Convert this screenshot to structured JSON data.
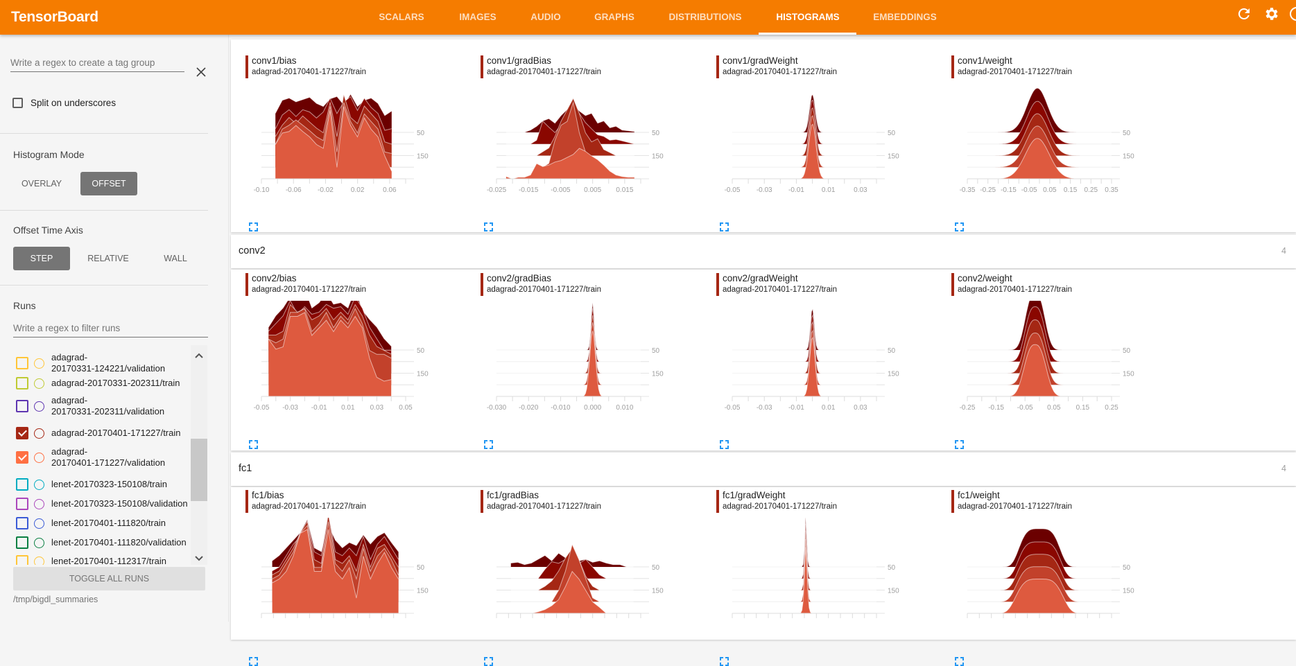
{
  "app": {
    "title": "TensorBoard"
  },
  "nav": {
    "tabs": [
      {
        "label": "SCALARS",
        "active": false
      },
      {
        "label": "IMAGES",
        "active": false
      },
      {
        "label": "AUDIO",
        "active": false
      },
      {
        "label": "GRAPHS",
        "active": false
      },
      {
        "label": "DISTRIBUTIONS",
        "active": false
      },
      {
        "label": "HISTOGRAMS",
        "active": true
      },
      {
        "label": "EMBEDDINGS",
        "active": false
      }
    ],
    "icons": [
      "reload-icon",
      "settings-icon",
      "info-icon"
    ]
  },
  "colors": {
    "brand": "#f57c00",
    "ridges": [
      "#6b0000",
      "#8a0700",
      "#a52714",
      "#c2412b",
      "#de5a3f"
    ],
    "accent_blue": "#2196f3"
  },
  "sidebar": {
    "tag_group_placeholder": "Write a regex to create a tag group",
    "split_label": "Split on underscores",
    "split_checked": false,
    "histogram_mode": {
      "label": "Histogram Mode",
      "options": [
        "OVERLAY",
        "OFFSET"
      ],
      "selected": "OFFSET"
    },
    "offset_axis": {
      "label": "Offset Time Axis",
      "options": [
        "STEP",
        "RELATIVE",
        "WALL"
      ],
      "selected": "STEP"
    },
    "runs_label": "Runs",
    "runs_filter_placeholder": "Write a regex to filter runs",
    "runs": [
      {
        "label": "adagrad-\n20170331-124221/validation",
        "color": "#ffc638",
        "checked": false
      },
      {
        "label": "adagrad-20170331-202311/train",
        "color": "#c0ca33",
        "checked": false
      },
      {
        "label": "adagrad-\n20170331-202311/validation",
        "color": "#5e35b1",
        "checked": false
      },
      {
        "label": "adagrad-20170401-171227/train",
        "color": "#a52714",
        "checked": true
      },
      {
        "label": "adagrad-\n20170401-171227/validation",
        "color": "#ff7043",
        "checked": true
      },
      {
        "label": "lenet-20170323-150108/train",
        "color": "#00acc1",
        "checked": false
      },
      {
        "label": "lenet-20170323-150108/validation",
        "color": "#ab47bc",
        "checked": false
      },
      {
        "label": "lenet-20170401-111820/train",
        "color": "#3b5bd6",
        "checked": false
      },
      {
        "label": "lenet-20170401-111820/validation",
        "color": "#0b8043",
        "checked": false
      },
      {
        "label": "lenet-20170401-112317/train",
        "color": "#ffc638",
        "checked": false
      }
    ],
    "toggle_all_label": "TOGGLE ALL RUNS",
    "logdir": "/tmp/bigdl_summaries"
  },
  "sections": [
    {
      "name": "",
      "count": "",
      "charts": [
        "conv1/bias",
        "conv1/gradBias",
        "conv1/gradWeight",
        "conv1/weight"
      ]
    },
    {
      "name": "conv2",
      "count": "4",
      "charts": [
        "conv2/bias",
        "conv2/gradBias",
        "conv2/gradWeight",
        "conv2/weight"
      ]
    },
    {
      "name": "fc1",
      "count": "4",
      "charts": [
        "fc1/bias",
        "fc1/gradBias",
        "fc1/gradWeight",
        "fc1/weight"
      ]
    }
  ],
  "chart_data": [
    {
      "type": "histogram-offset",
      "title": "conv1/bias",
      "run": "adagrad-20170401-171227/train",
      "steps": [
        50,
        100,
        150,
        200,
        250
      ],
      "step_labels": [
        "50",
        "150"
      ],
      "xlim": [
        -0.1,
        0.08
      ],
      "xticks": [
        "-0.10",
        "-0.06",
        "-0.02",
        "0.02",
        "0.06"
      ],
      "tick_values": [
        -0.1,
        -0.06,
        -0.02,
        0.02,
        0.06
      ],
      "data_range": [
        -0.0825,
        0.0625
      ],
      "densities": [
        [
          0.25,
          0.42,
          0.45,
          0.4,
          0.43,
          0.46,
          0.38,
          0.34,
          0.44,
          0.47,
          0.36,
          0.5,
          0.34,
          0.42,
          0.45,
          0.38,
          0.22,
          0.28
        ],
        [
          0.2,
          0.38,
          0.45,
          0.36,
          0.45,
          0.42,
          0.34,
          0.42,
          0.6,
          0.4,
          0.55,
          0.62,
          0.44,
          0.6,
          0.48,
          0.4,
          0.18,
          0.2
        ],
        [
          0.25,
          0.4,
          0.5,
          0.42,
          0.52,
          0.44,
          0.36,
          0.3,
          0.7,
          0.25,
          0.8,
          0.5,
          0.42,
          0.65,
          0.55,
          0.45,
          0.18,
          0.15
        ],
        [
          0.3,
          0.5,
          0.55,
          0.62,
          0.55,
          0.48,
          0.4,
          0.35,
          0.8,
          0.2,
          0.85,
          0.6,
          0.45,
          0.7,
          0.6,
          0.5,
          0.2,
          0.18
        ],
        [
          0.45,
          0.6,
          0.62,
          0.7,
          0.62,
          0.55,
          0.45,
          0.4,
          0.9,
          0.15,
          0.95,
          0.7,
          0.55,
          0.8,
          0.65,
          0.55,
          0.3,
          0.1
        ]
      ]
    },
    {
      "type": "histogram-offset",
      "title": "conv1/gradBias",
      "run": "adagrad-20170401-171227/train",
      "steps": [
        50,
        100,
        150,
        200,
        250
      ],
      "step_labels": [
        "50",
        "150"
      ],
      "xlim": [
        -0.025,
        0.02
      ],
      "xticks": [
        "-0.025",
        "-0.015",
        "-0.005",
        "0.005",
        "0.015"
      ],
      "tick_values": [
        -0.025,
        -0.015,
        -0.005,
        0.005,
        0.015
      ],
      "data_range": [
        -0.022,
        0.018
      ],
      "densities": [
        [
          0.0,
          0.0,
          0.0,
          0.0,
          0.03,
          0.08,
          0.15,
          0.18,
          0.12,
          0.22,
          0.3,
          0.36,
          0.28,
          0.22,
          0.25,
          0.12,
          0.15,
          0.06,
          0.08,
          0.03,
          0.02,
          0.01
        ],
        [
          0.0,
          0.0,
          0.0,
          0.0,
          0.0,
          0.05,
          0.3,
          0.22,
          0.15,
          0.25,
          0.4,
          0.55,
          0.4,
          0.28,
          0.2,
          0.12,
          0.1,
          0.05,
          0.06,
          0.04,
          0.02,
          0.0
        ],
        [
          0.0,
          0.0,
          0.0,
          0.0,
          0.0,
          0.0,
          0.05,
          0.1,
          0.25,
          0.45,
          0.6,
          0.75,
          0.55,
          0.3,
          0.18,
          0.22,
          0.08,
          0.04,
          0.0,
          0.0,
          0.0,
          0.0
        ],
        [
          0.0,
          0.0,
          0.0,
          0.0,
          0.0,
          0.0,
          0.0,
          0.05,
          0.35,
          0.55,
          0.6,
          0.85,
          0.45,
          0.2,
          0.1,
          0.05,
          0.0,
          0.0,
          0.0,
          0.0,
          0.0,
          0.0
        ],
        [
          0.03,
          0.0,
          0.02,
          0.02,
          0.05,
          0.2,
          0.16,
          0.18,
          0.22,
          0.24,
          0.28,
          0.32,
          0.4,
          0.36,
          0.3,
          0.25,
          0.18,
          0.1,
          0.05,
          0.03,
          0.02,
          0.02
        ]
      ]
    },
    {
      "type": "histogram-offset",
      "title": "conv1/gradWeight",
      "run": "adagrad-20170401-171227/train",
      "steps": [
        50,
        100,
        150,
        200,
        250
      ],
      "step_labels": [
        "50",
        "150"
      ],
      "xlim": [
        -0.05,
        0.04
      ],
      "xticks": [
        "-0.05",
        "-0.03",
        "-0.01",
        "0.01",
        "0.03"
      ],
      "tick_values": [
        -0.05,
        -0.03,
        -0.01,
        0.01,
        0.03
      ],
      "shape": "gaussian",
      "mean": 0.0,
      "std": [
        0.0018,
        0.0019,
        0.002,
        0.0021,
        0.0023
      ],
      "peaks": [
        0.5,
        0.58,
        0.63,
        0.68,
        0.72
      ],
      "power": 2
    },
    {
      "type": "histogram-offset",
      "title": "conv1/weight",
      "run": "adagrad-20170401-171227/train",
      "steps": [
        50,
        100,
        150,
        200,
        250
      ],
      "step_labels": [
        "50",
        "150"
      ],
      "xlim": [
        -0.35,
        0.35
      ],
      "xticks": [
        "-0.35",
        "-0.25",
        "-0.15",
        "-0.05",
        "0.05",
        "0.15",
        "0.25",
        "0.35"
      ],
      "tick_values": [
        -0.35,
        -0.25,
        -0.15,
        -0.05,
        0.05,
        0.15,
        0.25,
        0.35
      ],
      "shape": "gaussian",
      "mean": -0.01,
      "std": [
        0.05,
        0.052,
        0.054,
        0.056,
        0.058
      ],
      "peaks": [
        0.58,
        0.56,
        0.55,
        0.54,
        0.53
      ],
      "power": 2
    },
    {
      "type": "histogram-offset",
      "title": "conv2/bias",
      "run": "adagrad-20170401-171227/train",
      "steps": [
        50,
        100,
        150,
        200,
        250
      ],
      "step_labels": [
        "50",
        "150"
      ],
      "xlim": [
        -0.05,
        0.05
      ],
      "xticks": [
        "-0.05",
        "-0.03",
        "-0.01",
        "0.01",
        "0.03",
        "0.05"
      ],
      "tick_values": [
        -0.05,
        -0.03,
        -0.01,
        0.01,
        0.03,
        0.05
      ],
      "data_range": [
        -0.045,
        0.04
      ],
      "densities": [
        [
          0.3,
          0.45,
          0.55,
          0.7,
          0.75,
          0.8,
          0.55,
          0.62,
          0.75,
          0.6,
          0.62,
          0.55,
          0.8,
          0.52,
          0.4,
          0.3,
          0.15,
          0.05
        ],
        [
          0.4,
          0.5,
          0.6,
          0.8,
          0.62,
          0.72,
          0.62,
          0.65,
          0.75,
          0.7,
          0.72,
          0.62,
          0.85,
          0.7,
          0.45,
          0.3,
          0.15,
          0.15
        ],
        [
          0.5,
          0.5,
          0.55,
          0.9,
          0.8,
          0.85,
          0.7,
          0.75,
          0.85,
          0.7,
          0.8,
          0.7,
          0.9,
          0.75,
          0.5,
          0.35,
          0.3,
          0.25
        ],
        [
          0.6,
          0.55,
          0.6,
          0.95,
          0.95,
          1.0,
          0.7,
          0.8,
          0.95,
          0.75,
          0.9,
          0.8,
          1.0,
          0.8,
          0.45,
          0.4,
          0.4,
          0.35
        ],
        [
          0.75,
          0.62,
          0.65,
          1.05,
          1.05,
          1.1,
          0.8,
          0.9,
          1.0,
          0.85,
          1.0,
          0.9,
          1.05,
          0.9,
          0.5,
          0.25,
          0.2,
          0.22
        ]
      ]
    },
    {
      "type": "histogram-offset",
      "title": "conv2/gradBias",
      "run": "adagrad-20170401-171227/train",
      "steps": [
        50,
        100,
        150,
        200,
        250
      ],
      "step_labels": [
        "50",
        "150"
      ],
      "xlim": [
        -0.03,
        0.015
      ],
      "xticks": [
        "-0.030",
        "-0.020",
        "-0.010",
        "0.000",
        "0.010"
      ],
      "tick_values": [
        -0.03,
        -0.02,
        -0.01,
        0.0,
        0.01
      ],
      "shape": "gaussian",
      "mean": 0.0,
      "std": [
        0.0005,
        0.0006,
        0.0007,
        0.0008,
        0.0009
      ],
      "peaks": [
        0.62,
        0.7,
        0.76,
        0.82,
        0.86
      ],
      "power": 2
    },
    {
      "type": "histogram-offset",
      "title": "conv2/gradWeight",
      "run": "adagrad-20170401-171227/train",
      "steps": [
        50,
        100,
        150,
        200,
        250
      ],
      "step_labels": [
        "50",
        "150"
      ],
      "xlim": [
        -0.05,
        0.04
      ],
      "xticks": [
        "-0.05",
        "-0.03",
        "-0.01",
        "0.01",
        "0.03"
      ],
      "tick_values": [
        -0.05,
        -0.03,
        -0.01,
        0.01,
        0.03
      ],
      "shape": "gaussian",
      "mean": 0.0,
      "std": [
        0.0012,
        0.0013,
        0.0014,
        0.0015,
        0.0017
      ],
      "peaks": [
        0.55,
        0.62,
        0.68,
        0.72,
        0.78
      ],
      "power": 2
    },
    {
      "type": "histogram-offset",
      "title": "conv2/weight",
      "run": "adagrad-20170401-171227/train",
      "steps": [
        50,
        100,
        150,
        200,
        250
      ],
      "step_labels": [
        "50",
        "150"
      ],
      "xlim": [
        -0.25,
        0.25
      ],
      "xticks": [
        "-0.25",
        "-0.15",
        "-0.05",
        "0.05",
        "0.15",
        "0.25"
      ],
      "tick_values": [
        -0.25,
        -0.15,
        -0.05,
        0.05,
        0.15,
        0.25
      ],
      "shape": "gaussian",
      "mean": -0.015,
      "std": [
        0.032,
        0.033,
        0.034,
        0.035,
        0.036
      ],
      "peaks": [
        0.75,
        0.72,
        0.7,
        0.68,
        0.68
      ],
      "power": 2.6
    },
    {
      "type": "histogram-offset",
      "title": "fc1/bias",
      "run": "adagrad-20170401-171227/train",
      "steps": [
        50,
        100,
        150,
        200,
        250
      ],
      "step_labels": [
        "50",
        "150"
      ],
      "xlim": [
        -1,
        1
      ],
      "data_range": [
        -0.85,
        0.9
      ],
      "densities": [
        [
          0.08,
          0.15,
          0.25,
          0.35,
          0.45,
          0.62,
          0.25,
          0.2,
          0.55,
          0.35,
          0.25,
          0.32,
          0.28,
          0.42,
          0.3,
          0.4,
          0.45,
          0.32,
          0.2
        ],
        [
          0.1,
          0.15,
          0.3,
          0.45,
          0.55,
          0.75,
          0.35,
          0.3,
          0.85,
          0.35,
          0.3,
          0.4,
          0.3,
          0.55,
          0.25,
          0.45,
          0.55,
          0.4,
          0.25
        ],
        [
          0.2,
          0.25,
          0.4,
          0.55,
          0.75,
          0.9,
          0.4,
          0.35,
          1.0,
          0.4,
          0.35,
          0.45,
          0.25,
          0.6,
          0.3,
          0.55,
          0.6,
          0.45,
          0.3
        ],
        [
          0.3,
          0.35,
          0.5,
          0.65,
          0.9,
          1.0,
          0.45,
          0.45,
          1.05,
          0.5,
          0.4,
          0.55,
          0.3,
          0.7,
          0.4,
          0.6,
          0.7,
          0.55,
          0.35
        ],
        [
          0.4,
          0.45,
          0.55,
          0.75,
          1.05,
          1.1,
          0.55,
          0.55,
          1.1,
          0.55,
          0.45,
          0.6,
          0.2,
          0.75,
          0.45,
          0.65,
          0.8,
          0.6,
          0.45
        ]
      ]
    },
    {
      "type": "histogram-offset",
      "title": "fc1/gradBias",
      "run": "adagrad-20170401-171227/train",
      "steps": [
        50,
        100,
        150,
        200,
        250
      ],
      "step_labels": [
        "50",
        "150"
      ],
      "xlim": [
        -1,
        1
      ],
      "data_range": [
        -0.8,
        0.9
      ],
      "densities": [
        [
          0.05,
          0.06,
          0.03,
          0.05,
          0.1,
          0.15,
          0.08,
          0.18,
          0.12,
          0.15,
          0.08,
          0.1,
          0.06,
          0.08,
          0.05,
          0.03,
          0.03,
          0.0,
          0.0
        ],
        [
          0.0,
          0.0,
          0.0,
          0.0,
          0.0,
          0.12,
          0.22,
          0.2,
          0.25,
          0.35,
          0.2,
          0.25,
          0.15,
          0.05,
          0.0,
          0.0,
          0.0,
          0.0,
          0.0
        ],
        [
          0.0,
          0.0,
          0.0,
          0.0,
          0.0,
          0.05,
          0.12,
          0.25,
          0.42,
          0.55,
          0.4,
          0.18,
          0.05,
          0.0,
          0.0,
          0.0,
          0.0,
          0.0,
          0.0
        ],
        [
          0.0,
          0.0,
          0.0,
          0.0,
          0.0,
          0.0,
          0.0,
          0.15,
          0.4,
          0.75,
          0.55,
          0.3,
          0.05,
          0.0,
          0.0,
          0.0,
          0.0,
          0.0,
          0.0
        ],
        [
          0.0,
          0.0,
          0.0,
          0.0,
          0.02,
          0.05,
          0.1,
          0.18,
          0.35,
          0.55,
          0.45,
          0.3,
          0.15,
          0.08,
          0.0,
          0.0,
          0.0,
          0.0,
          0.0
        ]
      ]
    },
    {
      "type": "histogram-offset",
      "title": "fc1/gradWeight",
      "run": "adagrad-20170401-171227/train",
      "steps": [
        50,
        100,
        150,
        200,
        250
      ],
      "step_labels": [
        "50",
        "150"
      ],
      "xlim": [
        -1,
        1
      ],
      "shape": "gaussian",
      "mean": 0.02,
      "std": [
        0.012,
        0.013,
        0.014,
        0.015,
        0.017
      ],
      "peaks": [
        0.7,
        0.76,
        0.82,
        0.86,
        0.9
      ],
      "power": 1.6
    },
    {
      "type": "histogram-offset",
      "title": "fc1/weight",
      "run": "adagrad-20170401-171227/train",
      "steps": [
        50,
        100,
        150,
        200,
        250
      ],
      "step_labels": [
        "50",
        "150"
      ],
      "xlim": [
        -1,
        1
      ],
      "shape": "gaussian",
      "mean": 0.0,
      "std": [
        0.26,
        0.27,
        0.28,
        0.29,
        0.3
      ],
      "peaks": [
        0.5,
        0.48,
        0.47,
        0.46,
        0.45
      ],
      "power": 4
    }
  ]
}
